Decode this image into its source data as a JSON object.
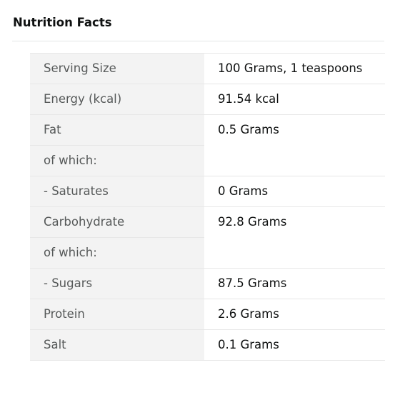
{
  "section": {
    "title": "Nutrition Facts"
  },
  "rows": [
    {
      "label": "Serving Size",
      "value": "100 Grams, 1 teaspoons"
    },
    {
      "label": "Energy (kcal)",
      "value": "91.54 kcal"
    },
    {
      "label": "Fat",
      "value": "0.5 Grams"
    },
    {
      "label": "of which:",
      "value": ""
    },
    {
      "label": "- Saturates",
      "value": "0 Grams"
    },
    {
      "label": "Carbohydrate",
      "value": "92.8 Grams"
    },
    {
      "label": "of which:",
      "value": ""
    },
    {
      "label": "- Sugars",
      "value": "87.5 Grams"
    },
    {
      "label": "Protein",
      "value": "2.6 Grams"
    },
    {
      "label": "Salt",
      "value": "0.1 Grams"
    }
  ]
}
